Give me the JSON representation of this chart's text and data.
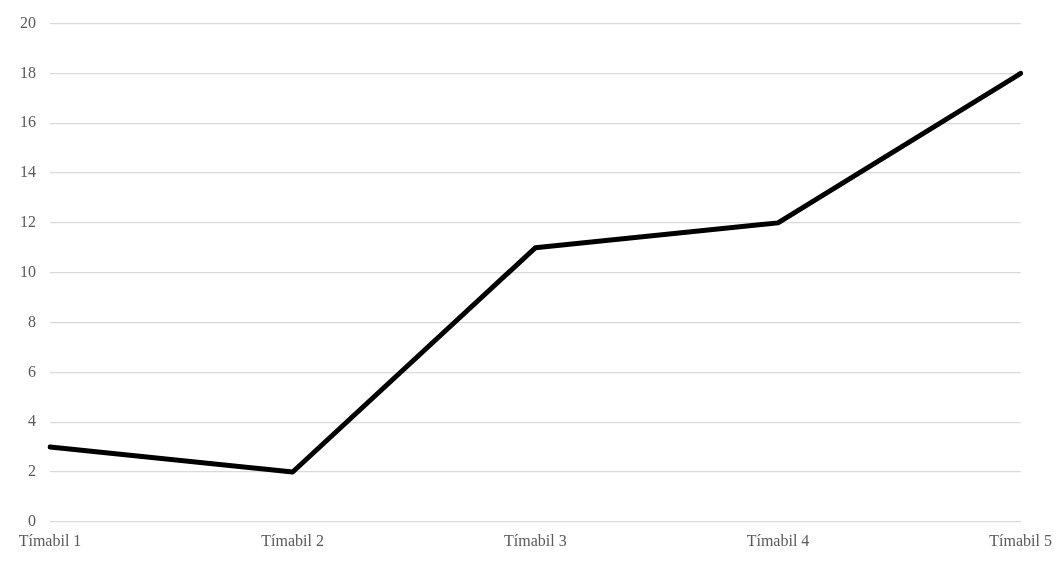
{
  "chart_data": {
    "type": "line",
    "categories": [
      "Tímabil 1",
      "Tímabil 2",
      "Tímabil 3",
      "Tímabil 4",
      "Tímabil 5"
    ],
    "series": [
      {
        "color": "#000000",
        "values": [
          3,
          2,
          11,
          12,
          18
        ]
      }
    ],
    "ylim": [
      0,
      20
    ],
    "yticks": [
      0,
      2,
      4,
      6,
      8,
      10,
      12,
      14,
      16,
      18,
      20
    ],
    "grid": "y",
    "legend": false,
    "marker": "none",
    "line_style": "solid"
  }
}
